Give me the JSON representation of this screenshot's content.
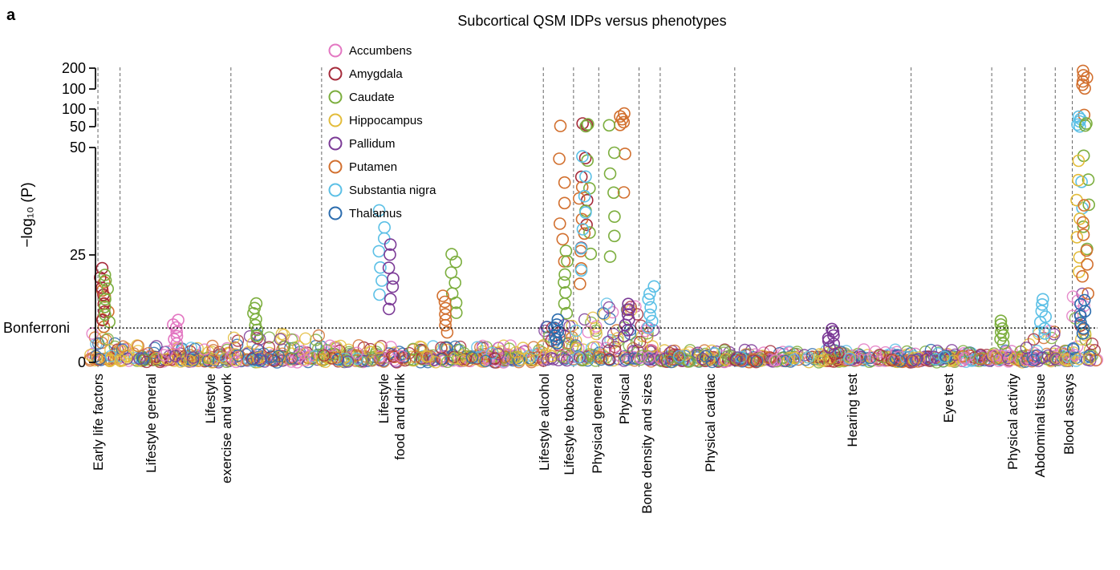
{
  "panel_letter": "a",
  "chart_data": {
    "type": "scatter",
    "title": "Subcortical QSM IDPs versus phenotypes",
    "ylabel": "−log₁₀ (P)",
    "y_axis_break": true,
    "y_segments": [
      {
        "range": [
          0,
          50
        ],
        "ticks": [
          "0",
          "25",
          "50"
        ]
      },
      {
        "range": [
          50,
          100
        ],
        "ticks": [
          "50",
          "100"
        ]
      },
      {
        "range": [
          100,
          200
        ],
        "ticks": [
          "100",
          "200"
        ]
      }
    ],
    "threshold": {
      "label": "Bonferroni",
      "value": 8
    },
    "legend_placement": "top-center",
    "series": [
      {
        "name": "Accumbens",
        "color": "#e377c2"
      },
      {
        "name": "Amygdala",
        "color": "#a52a3a"
      },
      {
        "name": "Caudate",
        "color": "#7cae3e"
      },
      {
        "name": "Hippocampus",
        "color": "#e3bc3a"
      },
      {
        "name": "Pallidum",
        "color": "#7b3a96"
      },
      {
        "name": "Putamen",
        "color": "#d2702f"
      },
      {
        "name": "Substantia nigra",
        "color": "#5cc0e6"
      },
      {
        "name": "Thalamus",
        "color": "#2b6cae"
      }
    ],
    "categories": [
      {
        "label": "Early life factors",
        "lines": [
          "Early life factors"
        ],
        "start": 0.0,
        "end": 0.03
      },
      {
        "label": "Lifestyle general",
        "lines": [
          "Lifestyle general"
        ],
        "start": 0.03,
        "end": 0.14
      },
      {
        "label": "Lifestyle exercise and work",
        "lines": [
          "Lifestyle",
          "exercise and work"
        ],
        "start": 0.14,
        "end": 0.23
      },
      {
        "label": "Lifestyle food and drink",
        "lines": [
          "Lifestyle",
          "food and drink"
        ],
        "start": 0.23,
        "end": 0.45
      },
      {
        "label": "Lifestyle alcohol",
        "lines": [
          "Lifestyle alcohol"
        ],
        "start": 0.45,
        "end": 0.48
      },
      {
        "label": "Lifestyle tobacco",
        "lines": [
          "Lifestyle tobacco"
        ],
        "start": 0.48,
        "end": 0.505
      },
      {
        "label": "Physical general",
        "lines": [
          "Physical general"
        ],
        "start": 0.505,
        "end": 0.545
      },
      {
        "label": "Physical",
        "lines": [
          "Physical"
        ],
        "start": 0.545,
        "end": 0.566
      },
      {
        "label": "Bone density and sizes",
        "lines": [
          "Bone density and sizes"
        ],
        "start": 0.566,
        "end": 0.64
      },
      {
        "label": "Physical cardiac",
        "lines": [
          "Physical cardiac"
        ],
        "start": 0.64,
        "end": 0.815
      },
      {
        "label": "Hearing test",
        "lines": [
          "Hearing test"
        ],
        "start": 0.815,
        "end": 0.895
      },
      {
        "label": "Eye test",
        "lines": [
          "Eye test"
        ],
        "start": 0.895,
        "end": 0.928
      },
      {
        "label": "Physical activity",
        "lines": [
          "Physical activity"
        ],
        "start": 0.928,
        "end": 0.958
      },
      {
        "label": "Abdominal tissue",
        "lines": [
          "Abdominal tissue"
        ],
        "start": 0.958,
        "end": 0.975
      },
      {
        "label": "Blood assays",
        "lines": [
          "Blood assays"
        ],
        "start": 0.975,
        "end": 1.0
      }
    ],
    "peaks": [
      {
        "category": "Early life factors",
        "series": "Putamen",
        "value": 19
      },
      {
        "category": "Early life factors",
        "series": "Amygdala",
        "value": 22
      },
      {
        "category": "Early life factors",
        "series": "Caudate",
        "value": 21
      },
      {
        "category": "Lifestyle general",
        "series": "Accumbens",
        "value": 10
      },
      {
        "category": "Lifestyle exercise and work",
        "series": "Caudate",
        "value": 14
      },
      {
        "category": "Lifestyle food and drink",
        "series": "Substantia nigra",
        "value": 36
      },
      {
        "category": "Lifestyle food and drink",
        "series": "Pallidum",
        "value": 28
      },
      {
        "category": "Lifestyle food and drink",
        "series": "Caudate",
        "value": 26
      },
      {
        "category": "Lifestyle food and drink",
        "series": "Putamen",
        "value": 16
      },
      {
        "category": "Lifestyle alcohol",
        "series": "Putamen",
        "value": 53
      },
      {
        "category": "Lifestyle alcohol",
        "series": "Caudate",
        "value": 26
      },
      {
        "category": "Lifestyle alcohol",
        "series": "Thalamus",
        "value": 10
      },
      {
        "category": "Lifestyle tobacco",
        "series": "Amygdala",
        "value": 60
      },
      {
        "category": "Lifestyle tobacco",
        "series": "Caudate",
        "value": 58
      },
      {
        "category": "Lifestyle tobacco",
        "series": "Putamen",
        "value": 42
      },
      {
        "category": "Lifestyle tobacco",
        "series": "Substantia nigra",
        "value": 49
      },
      {
        "category": "Physical general",
        "series": "Putamen",
        "value": 90
      },
      {
        "category": "Physical general",
        "series": "Caudate",
        "value": 55
      },
      {
        "category": "Physical general",
        "series": "Pallidum",
        "value": 14
      },
      {
        "category": "Physical",
        "series": "Substantia nigra",
        "value": 18
      },
      {
        "category": "Physical cardiac",
        "series": "Pallidum",
        "value": 8
      },
      {
        "category": "Eye test",
        "series": "Caudate",
        "value": 10
      },
      {
        "category": "Physical activity",
        "series": "Substantia nigra",
        "value": 15
      },
      {
        "category": "Blood assays",
        "series": "Putamen",
        "value": 190
      },
      {
        "category": "Blood assays",
        "series": "Substantia nigra",
        "value": 80
      },
      {
        "category": "Blood assays",
        "series": "Caudate",
        "value": 60
      },
      {
        "category": "Blood assays",
        "series": "Hippocampus",
        "value": 47
      },
      {
        "category": "Blood assays",
        "series": "Putamen",
        "value": 37
      },
      {
        "category": "Blood assays",
        "series": "Thalamus",
        "value": 15
      }
    ]
  }
}
